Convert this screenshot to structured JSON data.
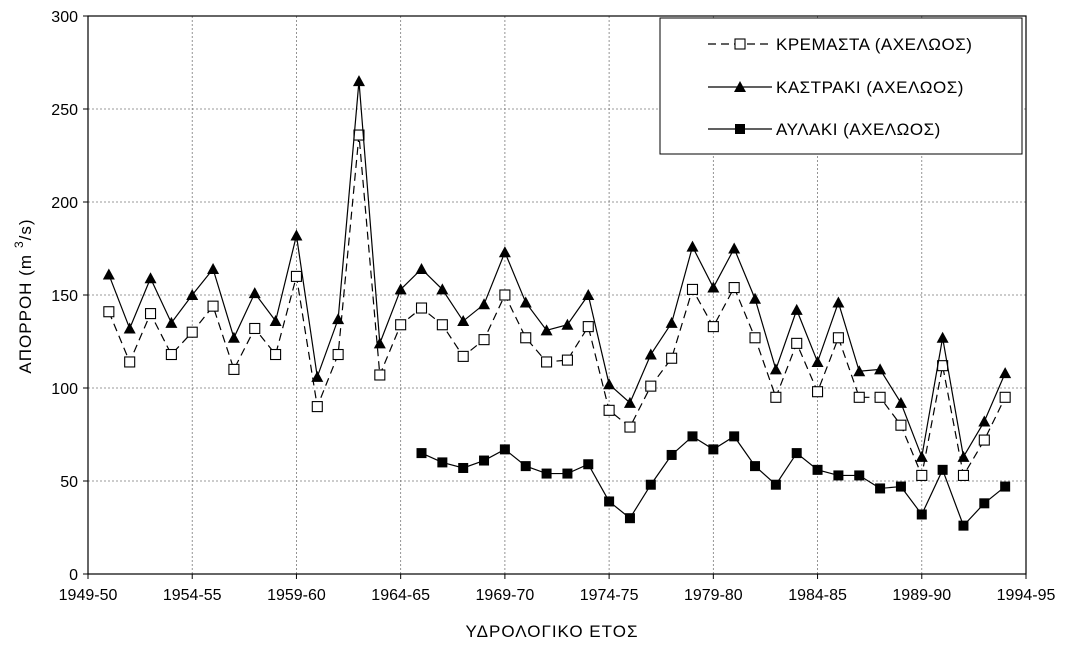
{
  "chart_data": {
    "type": "line",
    "xlabel": "ΥΔΡΟΛΟΓΙΚΟ ΕΤΟΣ",
    "ylabel": "ΑΠΟΡΡΟΗ (m 3/s)",
    "ylabel_parts": {
      "main": "ΑΠΟΡΡΟΗ (m",
      "sup": "3",
      "tail": "/s)"
    },
    "ylim": [
      0,
      300
    ],
    "yticks": [
      0,
      50,
      100,
      150,
      200,
      250,
      300
    ],
    "xlim": [
      1949,
      1994
    ],
    "xticks": [
      {
        "pos": 1949,
        "label": "1949-50"
      },
      {
        "pos": 1954,
        "label": "1954-55"
      },
      {
        "pos": 1959,
        "label": "1959-60"
      },
      {
        "pos": 1964,
        "label": "1964-65"
      },
      {
        "pos": 1969,
        "label": "1969-70"
      },
      {
        "pos": 1974,
        "label": "1974-75"
      },
      {
        "pos": 1979,
        "label": "1979-80"
      },
      {
        "pos": 1984,
        "label": "1984-85"
      },
      {
        "pos": 1989,
        "label": "1989-90"
      },
      {
        "pos": 1994,
        "label": "1994-95"
      }
    ],
    "grid": true,
    "legend_position": "top-right",
    "series": [
      {
        "name": "ΚΡΕΜΑΣΤΑ (ΑΧΕΛΩΟΣ)",
        "marker": "open-square",
        "line": "dashed",
        "x": [
          1950,
          1951,
          1952,
          1953,
          1954,
          1955,
          1956,
          1957,
          1958,
          1959,
          1960,
          1961,
          1962,
          1963,
          1964,
          1965,
          1966,
          1967,
          1968,
          1969,
          1970,
          1971,
          1972,
          1973,
          1974,
          1975,
          1976,
          1977,
          1978,
          1979,
          1980,
          1981,
          1982,
          1983,
          1984,
          1985,
          1986,
          1987,
          1988,
          1989,
          1990,
          1991,
          1992,
          1993
        ],
        "values": [
          141,
          114,
          140,
          118,
          130,
          144,
          110,
          132,
          118,
          160,
          90,
          118,
          236,
          107,
          134,
          143,
          134,
          117,
          126,
          150,
          127,
          114,
          115,
          133,
          88,
          79,
          101,
          116,
          153,
          133,
          154,
          127,
          95,
          124,
          98,
          127,
          95,
          95,
          80,
          53,
          112,
          53,
          72,
          95
        ]
      },
      {
        "name": "ΚΑΣΤΡΑΚΙ (ΑΧΕΛΩΟΣ)",
        "marker": "filled-triangle",
        "line": "solid",
        "x": [
          1950,
          1951,
          1952,
          1953,
          1954,
          1955,
          1956,
          1957,
          1958,
          1959,
          1960,
          1961,
          1962,
          1963,
          1964,
          1965,
          1966,
          1967,
          1968,
          1969,
          1970,
          1971,
          1972,
          1973,
          1974,
          1975,
          1976,
          1977,
          1978,
          1979,
          1980,
          1981,
          1982,
          1983,
          1984,
          1985,
          1986,
          1987,
          1988,
          1989,
          1990,
          1991,
          1992,
          1993
        ],
        "values": [
          161,
          132,
          159,
          135,
          150,
          164,
          127,
          151,
          136,
          182,
          106,
          137,
          265,
          124,
          153,
          164,
          153,
          136,
          145,
          173,
          146,
          131,
          134,
          150,
          102,
          92,
          118,
          135,
          176,
          154,
          175,
          148,
          110,
          142,
          114,
          146,
          109,
          110,
          92,
          63,
          127,
          63,
          82,
          108
        ]
      },
      {
        "name": "ΑΥΛΑΚΙ (ΑΧΕΛΩΟΣ)",
        "marker": "filled-square",
        "line": "solid",
        "x": [
          1965,
          1966,
          1967,
          1968,
          1969,
          1970,
          1971,
          1972,
          1973,
          1974,
          1975,
          1976,
          1977,
          1978,
          1979,
          1980,
          1981,
          1982,
          1983,
          1984,
          1985,
          1986,
          1987,
          1988,
          1989,
          1990,
          1991,
          1992,
          1993
        ],
        "values": [
          65,
          60,
          57,
          61,
          67,
          58,
          54,
          54,
          59,
          39,
          30,
          48,
          64,
          74,
          67,
          74,
          58,
          48,
          65,
          56,
          53,
          53,
          46,
          47,
          32,
          56,
          26,
          38,
          47
        ]
      }
    ]
  }
}
